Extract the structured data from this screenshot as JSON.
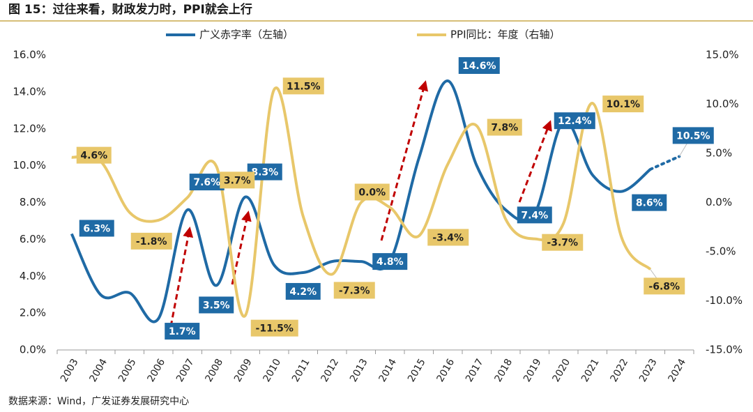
{
  "chart_data": {
    "type": "line",
    "title": "图 15：过往来看，财政发力时，PPI就会上行",
    "source": "数据来源：Wind，广发证券发展研究中心",
    "categories": [
      "2003",
      "2004",
      "2005",
      "2006",
      "2007",
      "2008",
      "2009",
      "2010",
      "2011",
      "2012",
      "2013",
      "2014",
      "2015",
      "2016",
      "2017",
      "2018",
      "2019",
      "2020",
      "2021",
      "2022",
      "2023",
      "2024"
    ],
    "projection_start": "2023",
    "series": [
      {
        "name": "广义赤字率（左轴）",
        "color": "#1f6aa5",
        "axis": "y",
        "values": [
          6.3,
          3.0,
          3.1,
          1.7,
          7.6,
          3.5,
          8.3,
          4.6,
          4.2,
          4.8,
          4.8,
          4.8,
          10.4,
          14.6,
          10.0,
          7.6,
          7.4,
          12.4,
          9.5,
          8.6,
          9.8,
          10.5
        ],
        "value_labels": [
          "6.3%",
          null,
          null,
          "1.7%",
          "7.6%",
          "3.5%",
          "8.3%",
          null,
          "4.2%",
          null,
          null,
          "4.8%",
          null,
          "14.6%",
          null,
          null,
          "7.4%",
          "12.4%",
          null,
          "8.6%",
          null,
          "10.5%"
        ]
      },
      {
        "name": "PPI同比：年度（右轴）",
        "color": "#e8c76a",
        "axis": "y2",
        "values": [
          4.6,
          4.2,
          -1.0,
          -1.8,
          0.5,
          3.7,
          -11.5,
          11.5,
          -1.4,
          -7.3,
          0.0,
          -0.5,
          -3.4,
          3.9,
          7.8,
          -1.7,
          -3.7,
          -2.1,
          10.1,
          -3.5,
          -6.8,
          null
        ],
        "value_labels": [
          "4.6%",
          null,
          null,
          "-1.8%",
          null,
          "3.7%",
          "-11.5%",
          "11.5%",
          null,
          "-7.3%",
          "0.0%",
          null,
          "-3.4%",
          null,
          "7.8%",
          null,
          "-3.7%",
          null,
          "10.1%",
          null,
          "-6.8%",
          null
        ]
      }
    ],
    "ylim": [
      0,
      16
    ],
    "yticks": [
      {
        "value": 0,
        "label": "0.0%"
      },
      {
        "value": 2,
        "label": "2.0%"
      },
      {
        "value": 4,
        "label": "4.0%"
      },
      {
        "value": 6,
        "label": "6.0%"
      },
      {
        "value": 8,
        "label": "8.0%"
      },
      {
        "value": 10,
        "label": "10.0%"
      },
      {
        "value": 12,
        "label": "12.0%"
      },
      {
        "value": 14,
        "label": "14.0%"
      },
      {
        "value": 16,
        "label": "16.0%"
      }
    ],
    "y2lim": [
      -15,
      15
    ],
    "y2ticks": [
      {
        "value": -15,
        "label": "-15.0%"
      },
      {
        "value": -10,
        "label": "-10.0%"
      },
      {
        "value": -5,
        "label": "-5.0%"
      },
      {
        "value": 0,
        "label": "0.0%"
      },
      {
        "value": 5,
        "label": "5.0%"
      },
      {
        "value": 10,
        "label": "10.0%"
      },
      {
        "value": 15,
        "label": "15.0%"
      }
    ]
  }
}
